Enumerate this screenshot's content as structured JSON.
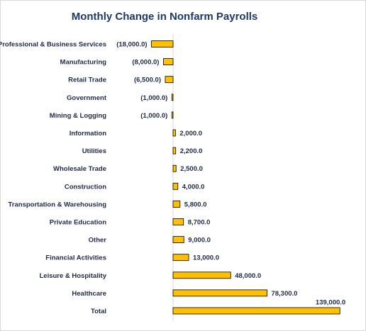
{
  "chart_data": {
    "type": "bar",
    "orientation": "horizontal",
    "title": "Monthly Change in Nonfarm Payrolls",
    "categories": [
      "Professional & Business Services",
      "Manufacturing",
      "Retail Trade",
      "Government",
      "Mining & Logging",
      "Information",
      "Utilities",
      "Wholesale Trade",
      "Construction",
      "Transportation & Warehousing",
      "Private Education",
      "Other",
      "Financial Activities",
      "Leisure & Hospitality",
      "Healthcare",
      "Total"
    ],
    "values": [
      -18000,
      -8000,
      -6500,
      -1000,
      -1000,
      2000,
      2200,
      2500,
      4000,
      5800,
      8700,
      9000,
      13000,
      48000,
      78300,
      139000
    ],
    "value_labels": [
      "(18,000.0)",
      "(8,000.0)",
      "(6,500.0)",
      "(1,000.0)",
      "(1,000.0)",
      "2,000.0",
      "2,200.0",
      "2,500.0",
      "4,000.0",
      "5,800.0",
      "8,700.0",
      "9,000.0",
      "13,000.0",
      "48,000.0",
      "78,300.0",
      "139,000.0"
    ],
    "xlim": [
      -18000,
      139000
    ],
    "grid": false,
    "legend": "none",
    "bar_color": "#FFC000",
    "bar_outline": "#000000"
  }
}
